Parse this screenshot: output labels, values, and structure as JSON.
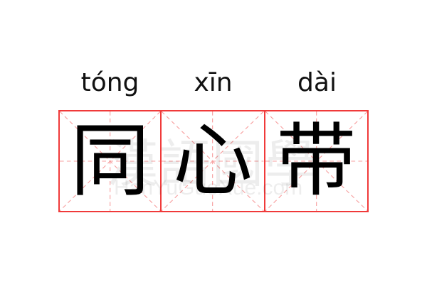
{
  "entries": [
    {
      "pinyin": "tóng",
      "hanzi": "同"
    },
    {
      "pinyin": "xīn",
      "hanzi": "心"
    },
    {
      "pinyin": "dài",
      "hanzi": "带"
    }
  ],
  "watermark": {
    "chinese": "漢語國學",
    "latin": "HanYuGuoXue.com"
  },
  "colors": {
    "grid_border": "#f03a3a",
    "guide_lines": "#f7a0a0",
    "text": "#000000"
  }
}
